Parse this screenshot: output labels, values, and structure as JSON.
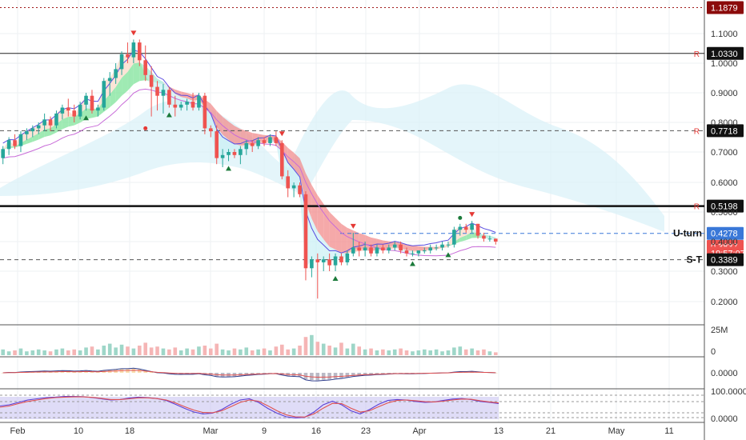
{
  "chart_data": {
    "type": "candlestick",
    "panels": [
      "price",
      "volume",
      "oscillator",
      "stochastic"
    ],
    "x_ticks": [
      "Feb",
      "10",
      "18",
      "Mar",
      "9",
      "16",
      "23",
      "Apr",
      "13",
      "21",
      "May",
      "11"
    ],
    "price_ticks": [
      "1.1000",
      "1.0000",
      "0.9000",
      "0.8000",
      "0.7000",
      "0.6000",
      "0.5000",
      "0.4000",
      "0.3000",
      "0.2000"
    ],
    "volume_ticks": [
      "25M",
      "0"
    ],
    "oscillator_ticks": [
      "0.0000"
    ],
    "stoch_ticks": [
      "100.0000",
      "0.0000"
    ],
    "ylim": [
      0.13,
      1.2
    ],
    "levels": [
      {
        "label": "1.1879",
        "value": 1.1879,
        "style": "dotted",
        "color": "#a01818",
        "badge": "#8b0a0a",
        "tag": ""
      },
      {
        "label": "1.0330",
        "value": 1.033,
        "style": "solid",
        "color": "#222222",
        "badge": "#111111",
        "tag": "R"
      },
      {
        "label": "0.7718",
        "value": 0.7718,
        "style": "dashed",
        "color": "#555555",
        "badge": "#111111",
        "tag": "R"
      },
      {
        "label": "0.5198",
        "value": 0.5198,
        "style": "solid-bold",
        "color": "#111111",
        "badge": "#111111",
        "tag": "R"
      },
      {
        "label": "0.4278",
        "value": 0.4278,
        "style": "dashed",
        "color": "#3a78d8",
        "badge": "#3a78d8",
        "tag": "U-turn"
      },
      {
        "label": "0.3837",
        "value": 0.3837,
        "style": "none",
        "color": "#e05050",
        "badge": "#ef5350",
        "tag": ""
      },
      {
        "label": "19:57:07",
        "value": 0.361,
        "style": "none",
        "color": "#e05050",
        "badge": "#ef5350",
        "tag": ""
      },
      {
        "label": "0.3389",
        "value": 0.3389,
        "style": "dashed",
        "color": "#555555",
        "badge": "#111111",
        "tag": "S-T"
      }
    ],
    "candles": [
      [
        0.68,
        0.72,
        0.66,
        0.71
      ],
      [
        0.71,
        0.75,
        0.69,
        0.74
      ],
      [
        0.74,
        0.76,
        0.71,
        0.72
      ],
      [
        0.72,
        0.77,
        0.7,
        0.76
      ],
      [
        0.76,
        0.78,
        0.74,
        0.77
      ],
      [
        0.77,
        0.79,
        0.75,
        0.78
      ],
      [
        0.78,
        0.8,
        0.76,
        0.79
      ],
      [
        0.79,
        0.83,
        0.77,
        0.81
      ],
      [
        0.81,
        0.82,
        0.77,
        0.79
      ],
      [
        0.79,
        0.84,
        0.78,
        0.83
      ],
      [
        0.83,
        0.86,
        0.81,
        0.85
      ],
      [
        0.85,
        0.88,
        0.82,
        0.84
      ],
      [
        0.84,
        0.86,
        0.8,
        0.82
      ],
      [
        0.82,
        0.87,
        0.81,
        0.86
      ],
      [
        0.86,
        0.9,
        0.84,
        0.89
      ],
      [
        0.89,
        0.91,
        0.83,
        0.84
      ],
      [
        0.84,
        0.86,
        0.82,
        0.85
      ],
      [
        0.85,
        0.95,
        0.84,
        0.94
      ],
      [
        0.94,
        0.97,
        0.89,
        0.95
      ],
      [
        0.95,
        1.0,
        0.93,
        0.98
      ],
      [
        0.98,
        1.04,
        0.96,
        1.03
      ],
      [
        1.03,
        1.07,
        1.0,
        1.02
      ],
      [
        1.02,
        1.08,
        1.0,
        1.07
      ],
      [
        1.07,
        1.08,
        0.99,
        1.01
      ],
      [
        1.01,
        1.06,
        0.94,
        0.96
      ],
      [
        0.96,
        0.99,
        0.82,
        0.92
      ],
      [
        0.92,
        0.94,
        0.84,
        0.89
      ],
      [
        0.89,
        0.93,
        0.83,
        0.91
      ],
      [
        0.91,
        0.92,
        0.85,
        0.86
      ],
      [
        0.86,
        0.89,
        0.82,
        0.85
      ],
      [
        0.85,
        0.87,
        0.84,
        0.86
      ],
      [
        0.86,
        0.88,
        0.84,
        0.87
      ],
      [
        0.87,
        0.9,
        0.84,
        0.85
      ],
      [
        0.85,
        0.9,
        0.84,
        0.89
      ],
      [
        0.89,
        0.9,
        0.76,
        0.78
      ],
      [
        0.78,
        0.79,
        0.75,
        0.77
      ],
      [
        0.77,
        0.79,
        0.66,
        0.68
      ],
      [
        0.68,
        0.71,
        0.65,
        0.69
      ],
      [
        0.69,
        0.71,
        0.67,
        0.7
      ],
      [
        0.7,
        0.71,
        0.68,
        0.69
      ],
      [
        0.69,
        0.72,
        0.66,
        0.71
      ],
      [
        0.71,
        0.74,
        0.69,
        0.73
      ],
      [
        0.73,
        0.74,
        0.7,
        0.72
      ],
      [
        0.72,
        0.75,
        0.71,
        0.74
      ],
      [
        0.74,
        0.75,
        0.72,
        0.73
      ],
      [
        0.73,
        0.76,
        0.72,
        0.75
      ],
      [
        0.75,
        0.77,
        0.72,
        0.73
      ],
      [
        0.73,
        0.74,
        0.61,
        0.62
      ],
      [
        0.62,
        0.64,
        0.55,
        0.58
      ],
      [
        0.58,
        0.6,
        0.55,
        0.59
      ],
      [
        0.59,
        0.6,
        0.55,
        0.56
      ],
      [
        0.56,
        0.57,
        0.27,
        0.31
      ],
      [
        0.31,
        0.35,
        0.28,
        0.34
      ],
      [
        0.34,
        0.36,
        0.21,
        0.33
      ],
      [
        0.33,
        0.35,
        0.3,
        0.34
      ],
      [
        0.34,
        0.36,
        0.3,
        0.32
      ],
      [
        0.32,
        0.36,
        0.3,
        0.35
      ],
      [
        0.35,
        0.36,
        0.32,
        0.33
      ],
      [
        0.33,
        0.37,
        0.32,
        0.36
      ],
      [
        0.36,
        0.43,
        0.35,
        0.38
      ],
      [
        0.38,
        0.4,
        0.35,
        0.37
      ],
      [
        0.37,
        0.4,
        0.35,
        0.38
      ],
      [
        0.38,
        0.39,
        0.35,
        0.36
      ],
      [
        0.36,
        0.39,
        0.35,
        0.38
      ],
      [
        0.38,
        0.39,
        0.36,
        0.37
      ],
      [
        0.37,
        0.39,
        0.36,
        0.38
      ],
      [
        0.38,
        0.4,
        0.37,
        0.39
      ],
      [
        0.39,
        0.4,
        0.36,
        0.37
      ],
      [
        0.37,
        0.38,
        0.35,
        0.36
      ],
      [
        0.36,
        0.37,
        0.35,
        0.36
      ],
      [
        0.36,
        0.37,
        0.35,
        0.37
      ],
      [
        0.37,
        0.38,
        0.36,
        0.37
      ],
      [
        0.37,
        0.39,
        0.36,
        0.38
      ],
      [
        0.38,
        0.39,
        0.37,
        0.38
      ],
      [
        0.38,
        0.4,
        0.37,
        0.39
      ],
      [
        0.39,
        0.4,
        0.38,
        0.39
      ],
      [
        0.39,
        0.45,
        0.38,
        0.44
      ],
      [
        0.44,
        0.46,
        0.42,
        0.45
      ],
      [
        0.45,
        0.46,
        0.43,
        0.44
      ],
      [
        0.44,
        0.47,
        0.43,
        0.46
      ],
      [
        0.46,
        0.46,
        0.41,
        0.42
      ],
      [
        0.42,
        0.43,
        0.4,
        0.41
      ],
      [
        0.41,
        0.42,
        0.4,
        0.41
      ],
      [
        0.41,
        0.41,
        0.39,
        0.4
      ]
    ],
    "volume": [
      6,
      4,
      5,
      7,
      4,
      5,
      6,
      5,
      4,
      6,
      7,
      5,
      6,
      5,
      8,
      9,
      6,
      10,
      12,
      8,
      11,
      9,
      7,
      10,
      13,
      8,
      9,
      7,
      6,
      8,
      5,
      7,
      6,
      9,
      10,
      7,
      12,
      6,
      5,
      7,
      6,
      8,
      5,
      6,
      7,
      5,
      9,
      11,
      6,
      7,
      10,
      19,
      21,
      14,
      12,
      10,
      8,
      13,
      7,
      12,
      9,
      6,
      7,
      5,
      6,
      5,
      6,
      7,
      5,
      4,
      5,
      6,
      5,
      6,
      4,
      5,
      8,
      9,
      6,
      7,
      5,
      6,
      4,
      3
    ],
    "stoch": [
      {
        "name": "",
        "color": "#5b3fd6",
        "values": [
          0.55,
          0.6,
          0.7,
          0.8,
          0.85,
          0.9,
          0.92,
          0.95,
          0.95,
          0.94,
          0.9,
          0.85,
          0.8,
          0.82,
          0.88,
          0.92,
          0.9,
          0.86,
          0.78,
          0.62,
          0.45,
          0.3,
          0.22,
          0.25,
          0.4,
          0.62,
          0.8,
          0.85,
          0.7,
          0.45,
          0.25,
          0.1,
          0.06,
          0.08,
          0.3,
          0.6,
          0.75,
          0.6,
          0.35,
          0.22,
          0.4,
          0.62,
          0.78,
          0.82,
          0.8,
          0.74,
          0.7,
          0.72,
          0.78,
          0.84,
          0.86,
          0.82,
          0.74,
          0.7,
          0.65
        ]
      },
      {
        "name": "",
        "color": "#e05050",
        "values": [
          0.5,
          0.55,
          0.65,
          0.74,
          0.8,
          0.86,
          0.9,
          0.92,
          0.93,
          0.93,
          0.91,
          0.87,
          0.82,
          0.82,
          0.85,
          0.89,
          0.89,
          0.86,
          0.8,
          0.68,
          0.52,
          0.38,
          0.28,
          0.27,
          0.35,
          0.52,
          0.7,
          0.8,
          0.75,
          0.56,
          0.35,
          0.18,
          0.1,
          0.09,
          0.22,
          0.46,
          0.66,
          0.65,
          0.46,
          0.3,
          0.35,
          0.52,
          0.68,
          0.78,
          0.8,
          0.77,
          0.73,
          0.72,
          0.75,
          0.8,
          0.84,
          0.83,
          0.77,
          0.72,
          0.68
        ]
      }
    ],
    "grid": true
  }
}
